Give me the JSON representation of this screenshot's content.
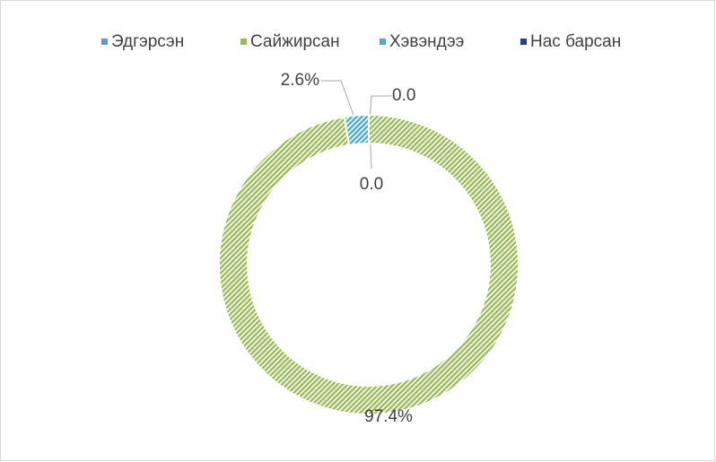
{
  "chart_data": {
    "type": "donut",
    "categories": [
      "Эдгэрсэн",
      "Сайжирсан",
      "Хэвэндээ",
      "Нас барсан"
    ],
    "values": [
      0,
      97.4,
      2.6,
      0
    ],
    "value_labels": [
      "0.0",
      "97.4%",
      "2.6%",
      "0.0"
    ],
    "colors": [
      "#5b9bd5",
      "#9bbb59",
      "#4bacc6",
      "#264478"
    ],
    "legend": "top"
  }
}
